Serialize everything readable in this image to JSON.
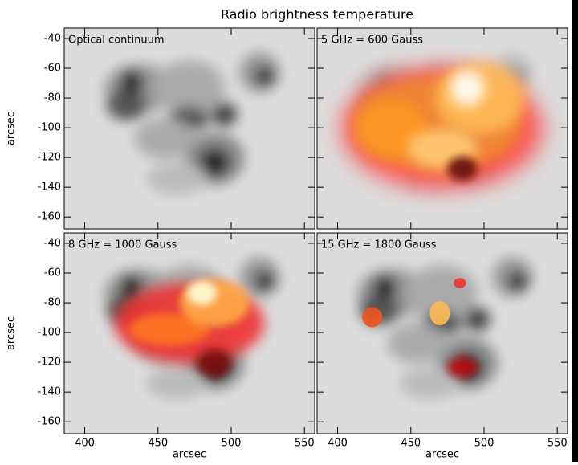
{
  "chart_data": {
    "type": "image-grid",
    "title": "Radio brightness temperature",
    "panels": [
      {
        "label": "Optical continuum"
      },
      {
        "label": "5 GHz = 600 Gauss"
      },
      {
        "label": "8 GHz = 1000 Gauss"
      },
      {
        "label": "15 GHz = 1800 Gauss"
      }
    ],
    "xlabel": "arcsec",
    "ylabel": "arcsec",
    "xlim": [
      386,
      557
    ],
    "xticks": [
      400,
      450,
      500,
      550
    ],
    "ylim": [
      -168,
      -33
    ],
    "yticks": [
      -40,
      -60,
      -80,
      -100,
      -120,
      -140,
      -160
    ]
  }
}
